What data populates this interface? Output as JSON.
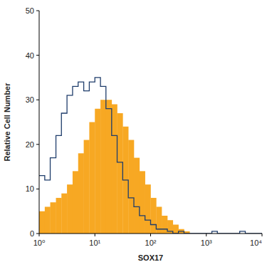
{
  "chart_data": {
    "type": "histogram",
    "x_label": "SOX17",
    "y_label": "Relative Cell Number",
    "log": "x",
    "bins": [
      1,
      1.26,
      1.58,
      2,
      2.51,
      3.16,
      3.98,
      5.01,
      6.31,
      7.94,
      10,
      12.6,
      15.8,
      20,
      25.1,
      31.6,
      39.8,
      50.1,
      63.1,
      79.4,
      100,
      126,
      158,
      200,
      251,
      316,
      398,
      501,
      631,
      794,
      1000,
      1260,
      1580,
      2000,
      2510,
      3160,
      3980,
      5010,
      6310,
      7940,
      10000
    ],
    "series": [
      {
        "type": "bar",
        "color": "#f7a823",
        "values": [
          5,
          6,
          7,
          8,
          9,
          11,
          14,
          18,
          21,
          25,
          28,
          30,
          30,
          29,
          27,
          24,
          21,
          17,
          14,
          11,
          8,
          6,
          4,
          3,
          2,
          1,
          0.5,
          0,
          0,
          0,
          0,
          0,
          0,
          0,
          0,
          0,
          0,
          0,
          0,
          0
        ]
      },
      {
        "type": "step",
        "color": "#1f3d6b",
        "values": [
          13,
          12,
          17,
          22,
          27,
          31,
          33,
          34,
          32,
          34,
          35,
          33,
          28,
          22,
          16,
          12,
          8,
          6,
          4,
          3,
          2,
          1,
          1,
          0.5,
          0,
          0.5,
          0,
          0,
          0,
          0,
          0,
          0.5,
          0,
          0,
          0,
          0,
          0.5,
          0,
          0,
          0
        ]
      }
    ],
    "xlim": [
      1,
      10000
    ],
    "xticks": [
      {
        "value": 1,
        "label": "10⁰"
      },
      {
        "value": 10,
        "label": "10¹"
      },
      {
        "value": 100,
        "label": "10²"
      },
      {
        "value": 1000,
        "label": "10³"
      },
      {
        "value": 10000,
        "label": "10⁴"
      }
    ],
    "ylim": [
      0,
      50
    ],
    "yticks": [
      0,
      10,
      20,
      30,
      40,
      50
    ]
  }
}
